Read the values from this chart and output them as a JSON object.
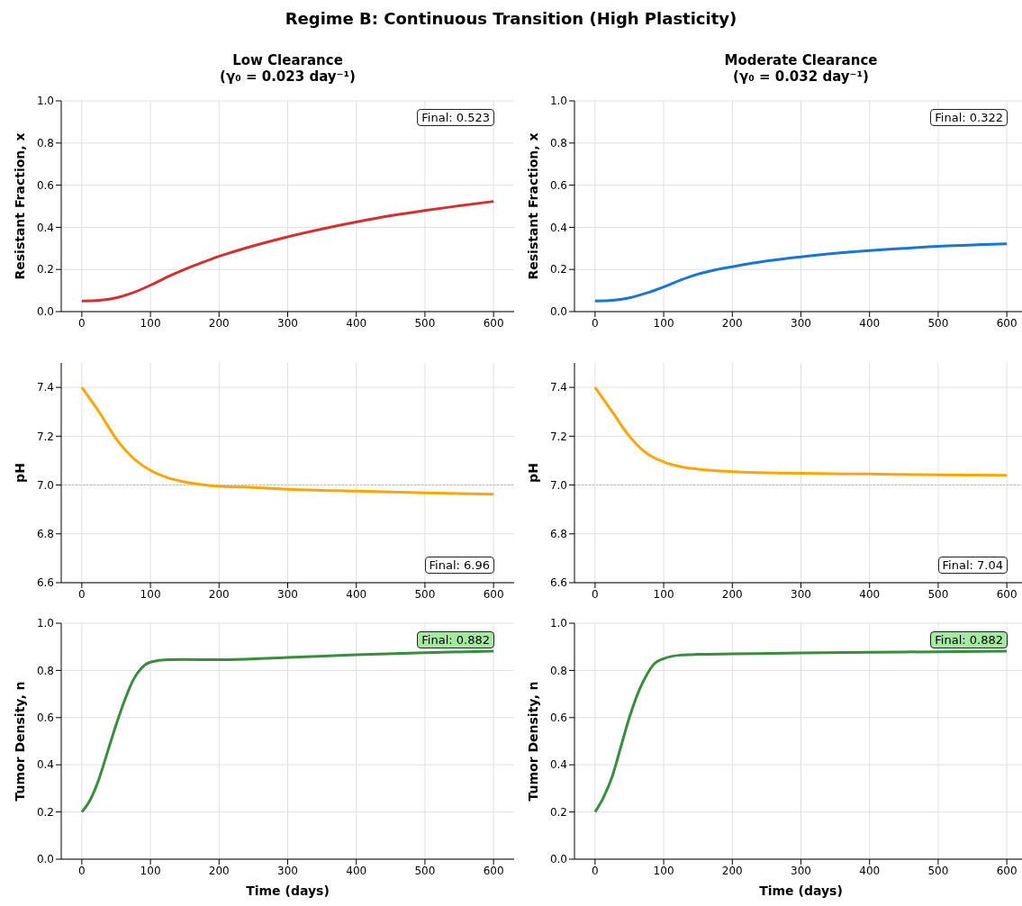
{
  "chart_data": [
    {
      "type": "line",
      "title": "Low Clearance\n(γ₀ = 0.023 day⁻¹)",
      "ylabel": "Resistant Fraction, x",
      "annotations": [
        "Regime B: Continuous Transition (High Plasticity)",
        "Final: 0.523"
      ],
      "x": [
        0,
        25,
        50,
        75,
        100,
        125,
        150,
        175,
        200,
        250,
        300,
        350,
        400,
        450,
        500,
        550,
        600
      ],
      "series": [
        {
          "color": "#d62f2f",
          "values": [
            0.05,
            0.053,
            0.065,
            0.09,
            0.125,
            0.165,
            0.2,
            0.232,
            0.262,
            0.312,
            0.355,
            0.392,
            0.425,
            0.455,
            0.48,
            0.502,
            0.523
          ]
        }
      ],
      "xlim": [
        -30,
        630
      ],
      "xticks": [
        0,
        100,
        200,
        300,
        400,
        500,
        600
      ],
      "ylim": [
        0,
        1
      ],
      "yticks": [
        {
          "value": 0,
          "label": "0.0"
        },
        0.2,
        0.4,
        0.6,
        0.8,
        {
          "value": 1,
          "label": "1.0"
        }
      ],
      "grid": true
    },
    {
      "type": "line",
      "title": "Moderate Clearance\n(γ₀ = 0.032 day⁻¹)",
      "ylabel": "Resistant Fraction, x",
      "annotations": [
        "Final: 0.322"
      ],
      "x": [
        0,
        25,
        50,
        75,
        100,
        125,
        150,
        175,
        200,
        250,
        300,
        350,
        400,
        450,
        500,
        550,
        600
      ],
      "series": [
        {
          "color": "#1976d2",
          "values": [
            0.05,
            0.053,
            0.065,
            0.088,
            0.117,
            0.15,
            0.178,
            0.198,
            0.213,
            0.24,
            0.26,
            0.277,
            0.29,
            0.3,
            0.31,
            0.316,
            0.322
          ]
        }
      ],
      "xlim": [
        -30,
        630
      ],
      "xticks": [
        0,
        100,
        200,
        300,
        400,
        500,
        600
      ],
      "ylim": [
        0,
        1
      ],
      "yticks": [
        {
          "value": 0,
          "label": "0.0"
        },
        0.2,
        0.4,
        0.6,
        0.8,
        {
          "value": 1,
          "label": "1.0"
        }
      ],
      "grid": true
    },
    {
      "type": "line",
      "ylabel": "pH",
      "annotations": [
        "Final: 6.96"
      ],
      "x": [
        0,
        25,
        50,
        75,
        100,
        125,
        150,
        200,
        250,
        300,
        400,
        500,
        600
      ],
      "series": [
        {
          "color": "#ffa500",
          "values": [
            7.4,
            7.3,
            7.19,
            7.11,
            7.06,
            7.03,
            7.012,
            6.995,
            6.99,
            6.983,
            6.975,
            6.968,
            6.962
          ]
        }
      ],
      "xlim": [
        -30,
        630
      ],
      "xticks": [
        0,
        100,
        200,
        300,
        400,
        500,
        600
      ],
      "ylim": [
        6.6,
        7.5
      ],
      "yticks": [
        6.6,
        6.8,
        {
          "value": 7,
          "label": "7.0"
        },
        7.2,
        7.4
      ],
      "grid": true,
      "ref_lines": [
        {
          "axis": "y",
          "value": 7,
          "color": "#aaaaaa",
          "line_style": "dotted"
        }
      ]
    },
    {
      "type": "line",
      "ylabel": "pH",
      "annotations": [
        "Final: 7.04"
      ],
      "x": [
        0,
        25,
        50,
        75,
        100,
        125,
        150,
        200,
        300,
        400,
        500,
        600
      ],
      "series": [
        {
          "color": "#ffa500",
          "values": [
            7.4,
            7.3,
            7.2,
            7.13,
            7.095,
            7.075,
            7.065,
            7.055,
            7.048,
            7.045,
            7.042,
            7.04
          ]
        }
      ],
      "xlim": [
        -30,
        630
      ],
      "xticks": [
        0,
        100,
        200,
        300,
        400,
        500,
        600
      ],
      "ylim": [
        6.6,
        7.5
      ],
      "yticks": [
        6.6,
        6.8,
        {
          "value": 7,
          "label": "7.0"
        },
        7.2,
        7.4
      ],
      "grid": true,
      "ref_lines": [
        {
          "axis": "y",
          "value": 7,
          "color": "#aaaaaa",
          "line_style": "dotted"
        }
      ]
    },
    {
      "type": "line",
      "xlabel": "Time (days)",
      "ylabel": "Tumor Density, n",
      "annotations": [
        "Final: 0.882"
      ],
      "x": [
        0,
        12,
        25,
        37,
        50,
        62,
        75,
        87,
        100,
        125,
        150,
        200,
        300,
        400,
        500,
        600
      ],
      "series": [
        {
          "color": "#388e3c",
          "values": [
            0.2,
            0.25,
            0.34,
            0.45,
            0.57,
            0.67,
            0.76,
            0.81,
            0.835,
            0.845,
            0.846,
            0.845,
            0.855,
            0.866,
            0.875,
            0.882
          ]
        }
      ],
      "xlim": [
        -30,
        630
      ],
      "xticks": [
        0,
        100,
        200,
        300,
        400,
        500,
        600
      ],
      "ylim": [
        0,
        1
      ],
      "yticks": [
        {
          "value": 0,
          "label": "0.0"
        },
        0.2,
        0.4,
        0.6,
        0.8,
        {
          "value": 1,
          "label": "1.0"
        }
      ],
      "grid": true
    },
    {
      "type": "line",
      "xlabel": "Time (days)",
      "ylabel": "Tumor Density, n",
      "annotations": [
        "Final: 0.882"
      ],
      "x": [
        0,
        12,
        25,
        37,
        50,
        62,
        75,
        87,
        100,
        125,
        150,
        200,
        300,
        400,
        500,
        600
      ],
      "series": [
        {
          "color": "#388e3c",
          "values": [
            0.2,
            0.26,
            0.35,
            0.47,
            0.6,
            0.7,
            0.78,
            0.83,
            0.85,
            0.865,
            0.868,
            0.87,
            0.874,
            0.877,
            0.879,
            0.882
          ]
        }
      ],
      "xlim": [
        -30,
        630
      ],
      "xticks": [
        0,
        100,
        200,
        300,
        400,
        500,
        600
      ],
      "ylim": [
        0,
        1
      ],
      "yticks": [
        {
          "value": 0,
          "label": "0.0"
        },
        0.2,
        0.4,
        0.6,
        0.8,
        {
          "value": 1,
          "label": "1.0"
        }
      ],
      "grid": true
    }
  ]
}
